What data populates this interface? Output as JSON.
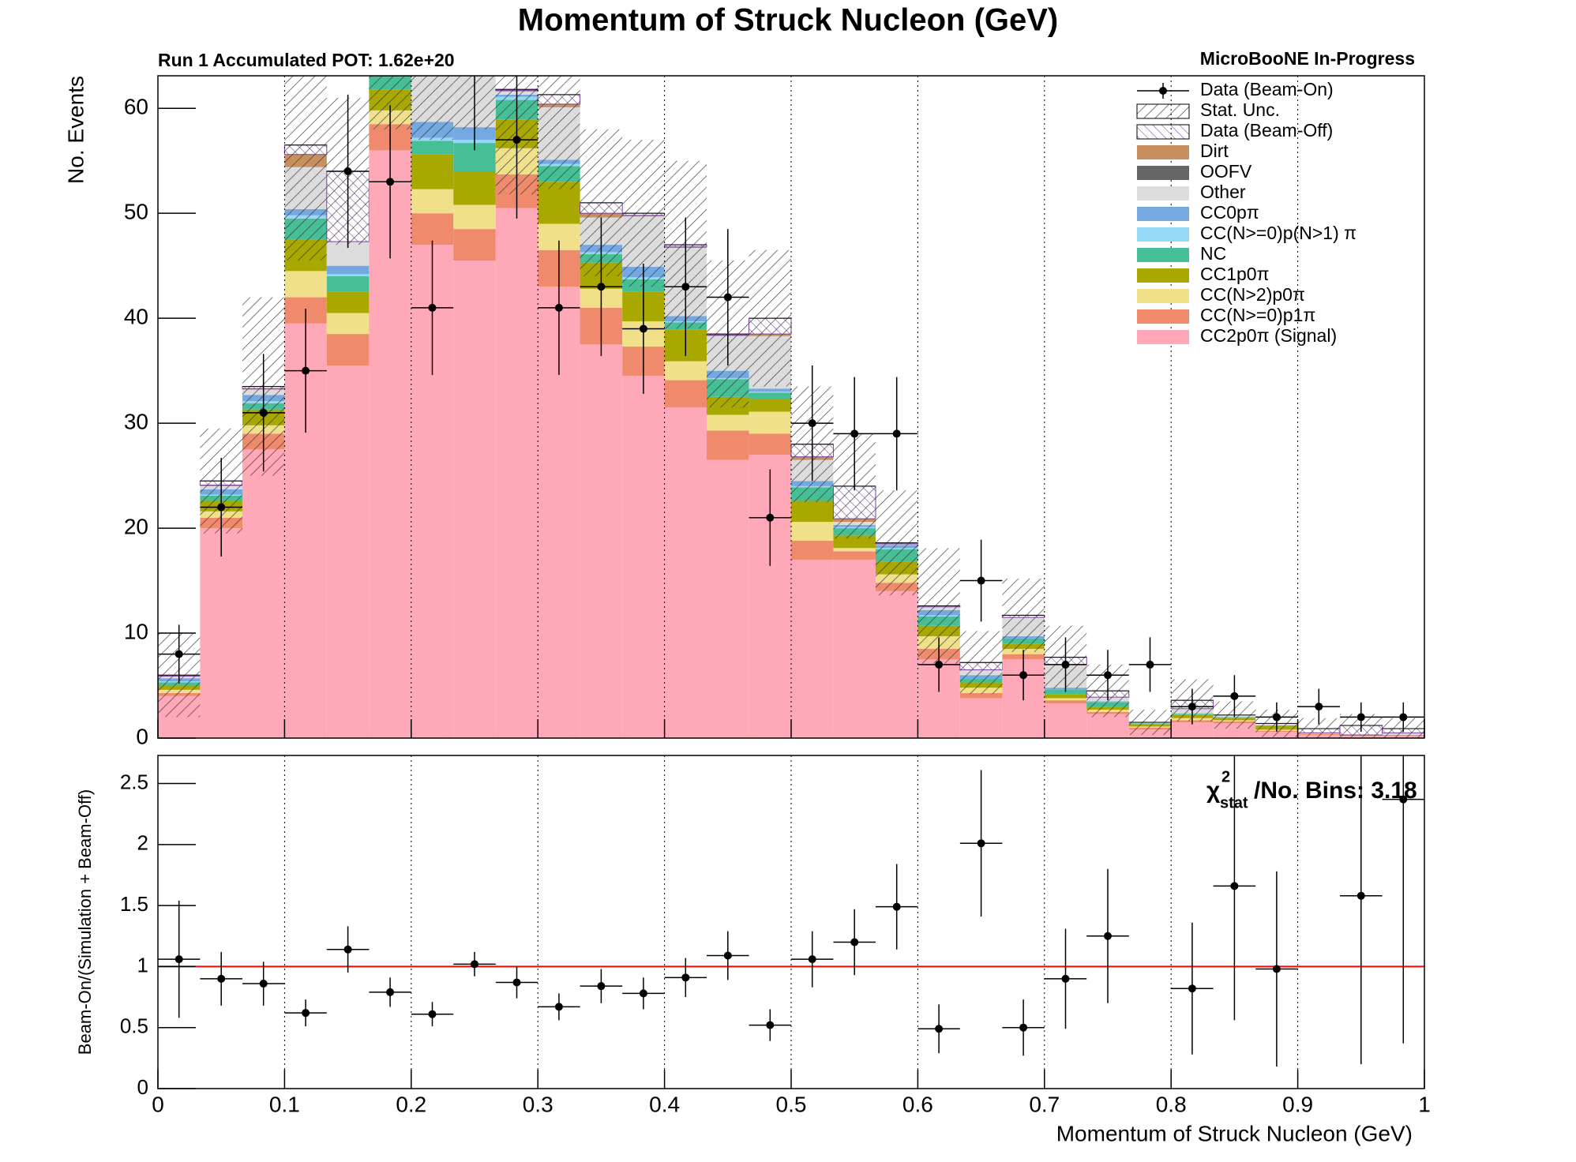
{
  "chart_data": [
    {
      "type": "stacked_histogram",
      "title": "Momentum of Struck Nucleon (GeV)",
      "subtitle": "Run 1 Accumulated POT: 1.62e+20",
      "label_right": "MicroBooNE In-Progress",
      "ylabel": "No. Events",
      "xlim": [
        0,
        1
      ],
      "ylim": [
        0,
        63.1
      ],
      "yticks": [
        0,
        10,
        20,
        30,
        40,
        50,
        60
      ],
      "bins": [
        0,
        0.0333,
        0.0667,
        0.1,
        0.1333,
        0.1667,
        0.2,
        0.2333,
        0.2667,
        0.3,
        0.3333,
        0.3667,
        0.4,
        0.4333,
        0.4667,
        0.5,
        0.5333,
        0.5667,
        0.6,
        0.6333,
        0.6667,
        0.7,
        0.7333,
        0.7667,
        0.8,
        0.8333,
        0.8667,
        0.9,
        0.9333,
        0.9667,
        1
      ],
      "series": [
        {
          "name": "CC2p0π (Signal)",
          "color": "#ffa8b8",
          "values": [
            4,
            20,
            27.5,
            39.5,
            35.5,
            56,
            47,
            45.5,
            50.5,
            43,
            37.5,
            34.5,
            31.5,
            26.5,
            27,
            17,
            17,
            14,
            7.5,
            3.8,
            7.5,
            3.3,
            2.3,
            0.8,
            1.5,
            1.4,
            0.6,
            0.3,
            0.2,
            0.2
          ]
        },
        {
          "name": "CC(N>=0)p1π",
          "color": "#f08a6c",
          "values": [
            0.3,
            1,
            1.5,
            2.5,
            3,
            2.5,
            3,
            3,
            3.2,
            3.5,
            3.5,
            2.8,
            2.6,
            2.8,
            2,
            1.8,
            0.8,
            0.8,
            1,
            0.5,
            0.5,
            0.3,
            0.2,
            0.2,
            0.2,
            0.2,
            0.1,
            0.1,
            0.1,
            0.1
          ]
        },
        {
          "name": "CC(N>2)p0π",
          "color": "#f0e08a",
          "values": [
            0.3,
            0.6,
            0.8,
            2.5,
            2,
            1.3,
            2.3,
            2.3,
            2.5,
            2.5,
            1.8,
            2.4,
            1.8,
            1.5,
            2.1,
            1.8,
            0.3,
            0.8,
            1.2,
            0.5,
            0.5,
            0.2,
            0.2,
            0.1,
            0.2,
            0.1,
            0.1,
            0.1,
            0,
            0
          ]
        },
        {
          "name": "CC1p0π",
          "color": "#a8a800",
          "values": [
            0.4,
            1,
            1.5,
            3,
            2,
            2,
            3.3,
            3.2,
            2.7,
            4,
            2.5,
            2.8,
            3,
            1.7,
            1.2,
            2,
            1.2,
            1.2,
            1,
            0.5,
            0.5,
            0.4,
            0.3,
            0.2,
            0.3,
            0.2,
            0.4,
            0,
            0,
            0
          ]
        },
        {
          "name": "NC",
          "color": "#47bf96",
          "values": [
            0.3,
            0.5,
            0.6,
            2,
            1.5,
            1.6,
            1.3,
            2.7,
            1.9,
            1.5,
            0.8,
            1.2,
            0.7,
            1.7,
            0.6,
            1.3,
            0.7,
            1.2,
            0.9,
            0.4,
            0.5,
            0.4,
            0.4,
            0.1,
            0.1,
            0.1,
            0,
            0,
            0,
            0
          ]
        },
        {
          "name": "CC(N>=0)p(N>1) π",
          "color": "#94d8f5",
          "values": [
            0.1,
            0.1,
            0.2,
            0.3,
            0.2,
            0.3,
            0.3,
            0.3,
            0.3,
            0.2,
            0.2,
            0.2,
            0.1,
            0.1,
            0.1,
            0.1,
            0.1,
            0.1,
            0.1,
            0,
            0,
            0,
            0,
            0,
            0.1,
            0,
            0,
            0,
            0,
            0
          ]
        },
        {
          "name": "CC0pπ",
          "color": "#74a8e0",
          "values": [
            0.3,
            0.5,
            0.6,
            0.6,
            0.8,
            0.5,
            1.5,
            1.2,
            0.2,
            0.4,
            0.7,
            1,
            0.5,
            0.7,
            0.3,
            0.5,
            0.2,
            0.3,
            0.5,
            0.3,
            0.2,
            0.2,
            0.1,
            0,
            0,
            0,
            0,
            0,
            0,
            0
          ]
        },
        {
          "name": "Other",
          "color": "#dcdcdc",
          "values": [
            0.2,
            0.3,
            0.5,
            4,
            2.3,
            3.5,
            8,
            9.5,
            0.3,
            5,
            2.6,
            4.8,
            6.5,
            3.3,
            5,
            2,
            0.3,
            0.1,
            0.3,
            0.5,
            1.8,
            2.2,
            0.4,
            0.1,
            0.4,
            0.2,
            0.2,
            0,
            0,
            0.2
          ]
        },
        {
          "name": "OOFV",
          "color": "#666666",
          "values": [
            0,
            0,
            0,
            0,
            0,
            0,
            0,
            0,
            0,
            0,
            0,
            0,
            0,
            0,
            0,
            0,
            0,
            0,
            0,
            0,
            0,
            0,
            0,
            0,
            0,
            0,
            0,
            0,
            0,
            0
          ]
        },
        {
          "name": "Dirt",
          "color": "#c8905e",
          "values": [
            0,
            0.1,
            0.1,
            1.2,
            0,
            0.1,
            0.1,
            0.1,
            0.1,
            0.3,
            0.4,
            0.1,
            0.1,
            0.1,
            0.2,
            0.3,
            0.3,
            0,
            0,
            0,
            0,
            0,
            0,
            0,
            0,
            0,
            0,
            0,
            0,
            0
          ]
        },
        {
          "name": "Data (Beam-Off)",
          "color": "#7b3fa0",
          "hatch": true,
          "values": [
            0.1,
            0.4,
            0.2,
            0.9,
            6.7,
            0.2,
            0.2,
            0.2,
            0.1,
            0.9,
            1,
            0.2,
            0.2,
            0.1,
            1.5,
            1.2,
            3.1,
            0.1,
            0.1,
            0.7,
            0.2,
            0.7,
            0.6,
            0,
            0.8,
            0,
            0,
            0.4,
            0.9,
            0.4
          ]
        }
      ],
      "stat_unc": {
        "name": "Stat. Unc.",
        "color": "#000000",
        "values": [
          4,
          5,
          8.5,
          11,
          7,
          10,
          10,
          10,
          10,
          9,
          7,
          7,
          8,
          7,
          6.5,
          5.5,
          5,
          5,
          5.5,
          3,
          3.5,
          3,
          2.5,
          1.2,
          2,
          1.3,
          1.3,
          1,
          1.1,
          1
        ]
      },
      "data": {
        "name": "Data (Beam-On)",
        "color": "#000000",
        "values": [
          8,
          22,
          31,
          35,
          54,
          53,
          41,
          64,
          57,
          41,
          43,
          39,
          43,
          42,
          21,
          30,
          29,
          29,
          7,
          15,
          6,
          7,
          6,
          7,
          3,
          4,
          2,
          3,
          2,
          2
        ],
        "errors": [
          2.8,
          4.7,
          5.6,
          5.9,
          7.3,
          7.3,
          6.4,
          8,
          7.5,
          6.4,
          6.6,
          6.2,
          6.6,
          6.5,
          4.6,
          5.5,
          5.4,
          5.4,
          2.6,
          3.9,
          2.4,
          2.6,
          2.4,
          2.6,
          1.7,
          2,
          1.4,
          1.7,
          1.4,
          1.4
        ]
      }
    },
    {
      "type": "ratio",
      "ylabel": "Beam-On/(Simulation + Beam-Off)",
      "xlabel": "Momentum of Struck Nucleon (GeV)",
      "xlim": [
        0,
        1
      ],
      "xticks": [
        0,
        0.1,
        0.2,
        0.3,
        0.4,
        0.5,
        0.6,
        0.7,
        0.8,
        0.9,
        1
      ],
      "ylim": [
        0,
        2.73
      ],
      "yticks": [
        0,
        0.5,
        1,
        1.5,
        2,
        2.5
      ],
      "grid": true,
      "reference": 1,
      "reference_color": "#ff0000",
      "values": [
        1.06,
        0.9,
        0.86,
        0.62,
        1.14,
        0.79,
        0.61,
        1.02,
        0.87,
        0.67,
        0.84,
        0.78,
        0.91,
        1.09,
        0.52,
        1.06,
        1.2,
        1.49,
        0.49,
        2.01,
        0.5,
        0.9,
        1.25,
        null,
        0.82,
        1.66,
        0.98,
        null,
        1.58,
        2.37
      ],
      "errors": [
        0.48,
        0.22,
        0.18,
        0.11,
        0.19,
        0.12,
        0.1,
        0.1,
        0.13,
        0.11,
        0.14,
        0.13,
        0.16,
        0.2,
        0.13,
        0.23,
        0.27,
        0.35,
        0.2,
        0.6,
        0.23,
        0.41,
        0.55,
        null,
        0.54,
        1.1,
        0.8,
        null,
        1.38,
        2.0
      ],
      "annotation": {
        "symbol": "χ",
        "sup": "2",
        "sub": "stat",
        "text": "/No. Bins: 3.18"
      }
    }
  ]
}
